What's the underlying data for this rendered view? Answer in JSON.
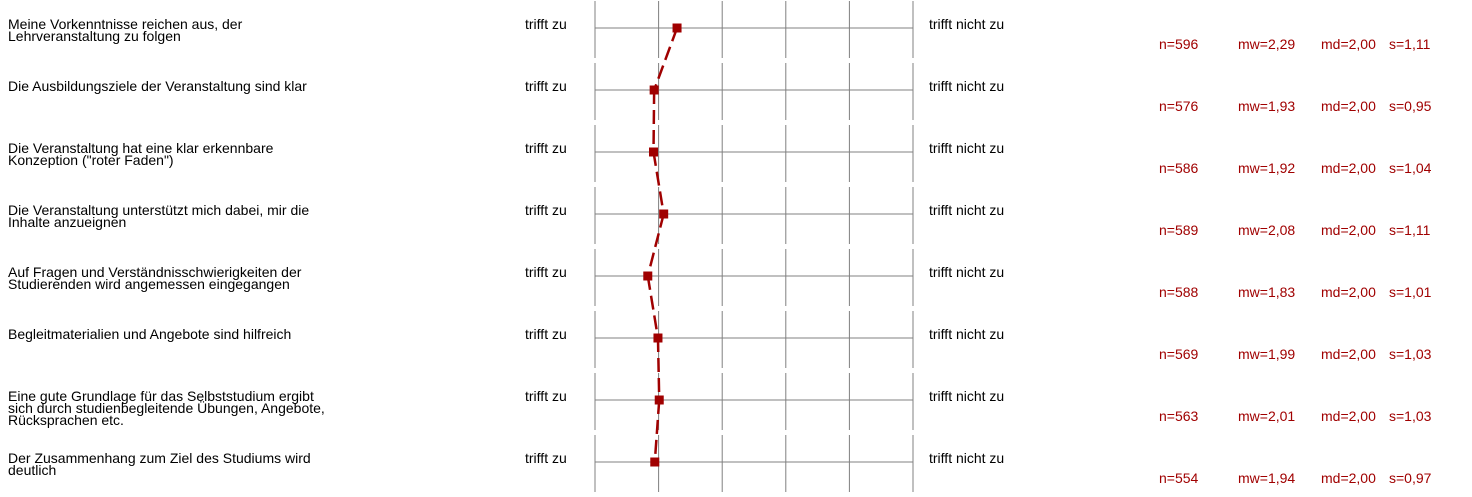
{
  "chart_data": {
    "type": "line",
    "scale_labels": {
      "left": "trifft zu",
      "right": "trifft nicht zu"
    },
    "scale_points": 5,
    "accent_color": "#a00000",
    "grid_color": "#808080",
    "items": [
      {
        "question": "Meine Vorkenntnisse reichen aus, der\nLehrveranstaltung zu folgen",
        "value": 2.29,
        "stats": {
          "n": "n=596",
          "mw": "mw=2,29",
          "md": "md=2,00",
          "s": "s=1,11"
        }
      },
      {
        "question": "Die Ausbildungsziele der Veranstaltung sind klar",
        "value": 1.93,
        "stats": {
          "n": "n=576",
          "mw": "mw=1,93",
          "md": "md=2,00",
          "s": "s=0,95"
        }
      },
      {
        "question": "Die Veranstaltung hat eine klar erkennbare\nKonzeption (\"roter Faden\")",
        "value": 1.92,
        "stats": {
          "n": "n=586",
          "mw": "mw=1,92",
          "md": "md=2,00",
          "s": "s=1,04"
        }
      },
      {
        "question": "Die Veranstaltung unterstützt mich dabei, mir die\nInhalte anzueignen",
        "value": 2.08,
        "stats": {
          "n": "n=589",
          "mw": "mw=2,08",
          "md": "md=2,00",
          "s": "s=1,11"
        }
      },
      {
        "question": "Auf Fragen und Verständnisschwierigkeiten der\nStudierenden wird angemessen eingegangen",
        "value": 1.83,
        "stats": {
          "n": "n=588",
          "mw": "mw=1,83",
          "md": "md=2,00",
          "s": "s=1,01"
        }
      },
      {
        "question": "Begleitmaterialien und Angebote sind hilfreich",
        "value": 1.99,
        "stats": {
          "n": "n=569",
          "mw": "mw=1,99",
          "md": "md=2,00",
          "s": "s=1,03"
        }
      },
      {
        "question": "Eine gute Grundlage für das Selbststudium ergibt\nsich durch studienbegleitende Übungen, Angebote,\nRücksprachen etc.",
        "value": 2.01,
        "stats": {
          "n": "n=563",
          "mw": "mw=2,01",
          "md": "md=2,00",
          "s": "s=1,03"
        }
      },
      {
        "question": "Der Zusammenhang zum Ziel des Studiums wird\ndeutlich",
        "value": 1.94,
        "stats": {
          "n": "n=554",
          "mw": "mw=1,94",
          "md": "md=2,00",
          "s": "s=0,97"
        }
      }
    ]
  }
}
